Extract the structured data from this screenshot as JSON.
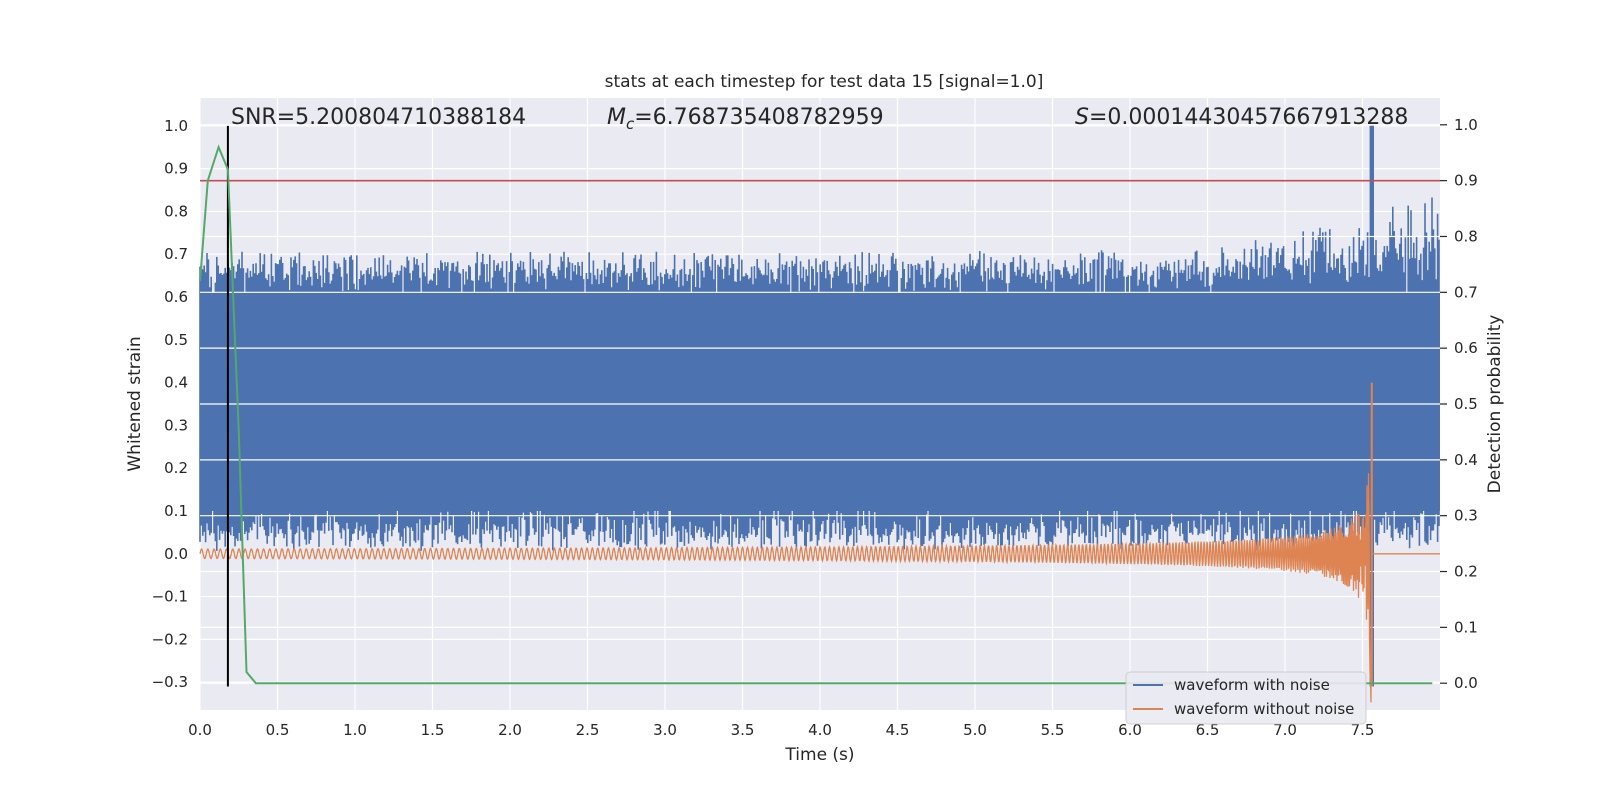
{
  "chart_data": {
    "type": "line",
    "title": "stats at each timestep for test data 15 [signal=1.0]",
    "xlabel": "Time (s)",
    "ylabel_left": "Whitened strain",
    "ylabel_right": "Detection probability",
    "xlim": [
      0.0,
      8.0
    ],
    "ylim_left": [
      -0.365,
      1.065
    ],
    "ylim_right": [
      -0.048,
      1.048
    ],
    "x_ticks": [
      "0.0",
      "0.5",
      "1.0",
      "1.5",
      "2.0",
      "2.5",
      "3.0",
      "3.5",
      "4.0",
      "4.5",
      "5.0",
      "5.5",
      "6.0",
      "6.5",
      "7.0",
      "7.5"
    ],
    "x_tick_values": [
      0.0,
      0.5,
      1.0,
      1.5,
      2.0,
      2.5,
      3.0,
      3.5,
      4.0,
      4.5,
      5.0,
      5.5,
      6.0,
      6.5,
      7.0,
      7.5
    ],
    "y_left_ticks": [
      "1.0",
      "0.9",
      "0.8",
      "0.7",
      "0.6",
      "0.5",
      "0.4",
      "0.3",
      "0.2",
      "0.1",
      "0.0",
      "−0.1",
      "−0.2",
      "−0.3"
    ],
    "y_left_tick_values": [
      1.0,
      0.9,
      0.8,
      0.7,
      0.6,
      0.5,
      0.4,
      0.3,
      0.2,
      0.1,
      0.0,
      -0.1,
      -0.2,
      -0.3
    ],
    "y_right_ticks": [
      "1.0",
      "0.9",
      "0.8",
      "0.7",
      "0.6",
      "0.5",
      "0.4",
      "0.3",
      "0.2",
      "0.1",
      "0.0"
    ],
    "y_right_tick_values": [
      1.0,
      0.9,
      0.8,
      0.7,
      0.6,
      0.5,
      0.4,
      0.3,
      0.2,
      0.1,
      0.0
    ],
    "grid": true,
    "annotations": {
      "snr": "SNR=5.200804710388184",
      "mc_symbol": "M",
      "mc_sub": "c",
      "mc_value": "=6.768735408782959",
      "s_symbol": "S",
      "s_value": "=0.00014430457667913288"
    },
    "series": [
      {
        "name": "waveform with noise",
        "color": "#4c72b0",
        "description_values": {
          "band_low": 0.03,
          "band_high": 0.68,
          "peak_x": 7.56,
          "peak_y": 1.0
        }
      },
      {
        "name": "waveform without noise",
        "color": "#dd8452",
        "description_values": {
          "start_amplitude": 0.02,
          "merger_x": 7.56,
          "max_y": 0.4,
          "min_y": -0.31
        }
      },
      {
        "name": "detection probability",
        "color": "#55a868",
        "axis": "right",
        "x": [
          0.0,
          0.05,
          0.12,
          0.18,
          0.25,
          0.3,
          0.36,
          7.95
        ],
        "y": [
          0.72,
          0.9,
          0.96,
          0.92,
          0.45,
          0.02,
          0.0,
          0.0
        ]
      }
    ],
    "threshold_line": {
      "y_right": 0.9,
      "color": "#c44e52"
    },
    "vertical_marker": {
      "x": 0.18,
      "color": "#000000"
    },
    "legend": {
      "position": "lower-right",
      "entries": [
        "waveform with noise",
        "waveform without noise"
      ]
    }
  }
}
